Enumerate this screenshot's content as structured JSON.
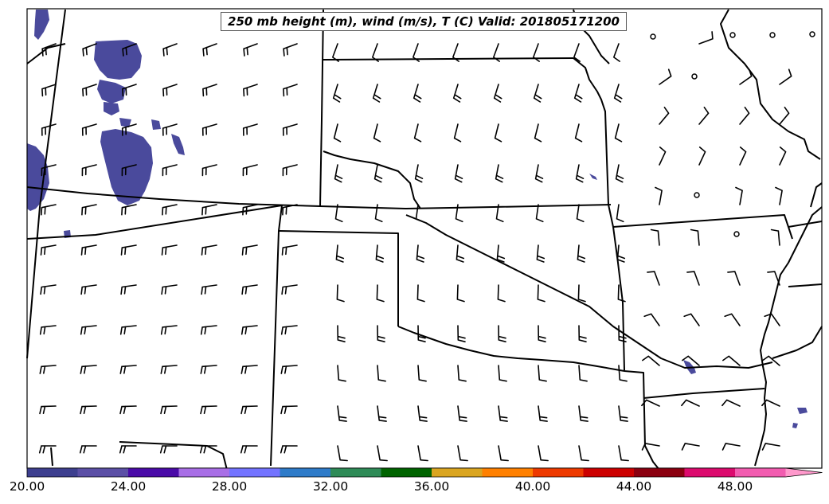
{
  "map": {
    "title": "250 mb height (m), wind (m/s), T (C) Valid: 201805171200",
    "colorbar": {
      "tick_labels": [
        "20.00",
        "24.00",
        "28.00",
        "32.00",
        "36.00",
        "40.00",
        "44.00",
        "48.00"
      ],
      "colors": [
        "#3d3f8f",
        "#5b4fa6",
        "#4a0aa8",
        "#a86ee6",
        "#7373ff",
        "#2e7bc9",
        "#2e8b57",
        "#006400",
        "#daa520",
        "#ff8000",
        "#ee3a00",
        "#cc0000",
        "#8b0010",
        "#dc0a6e",
        "#f25cb0",
        "#ff99cc"
      ],
      "extend": "max"
    },
    "shading_color": "#4a4a9c"
  }
}
